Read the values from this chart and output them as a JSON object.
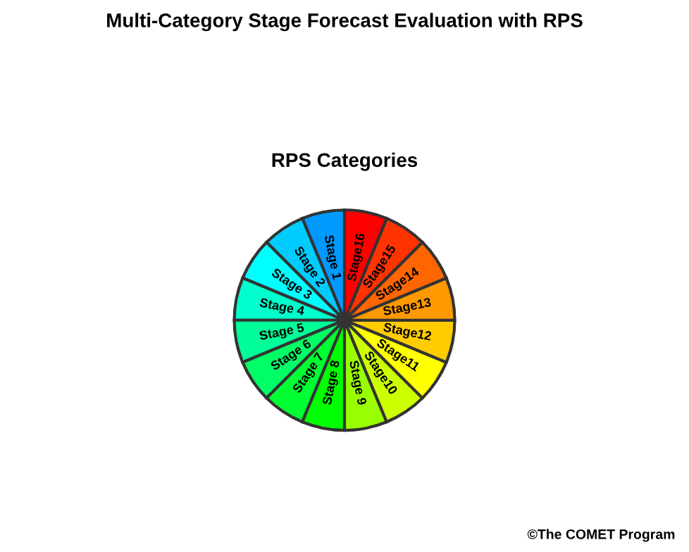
{
  "chart_data": {
    "type": "pie",
    "title": "Multi-Category Stage Forecast Evaluation with RPS",
    "subtitle": "RPS Categories",
    "categories": [
      "Stage 1",
      "Stage 2",
      "Stage 3",
      "Stage 4",
      "Stage 5",
      "Stage 6",
      "Stage 7",
      "Stage 8",
      "Stage 9",
      "Stage10",
      "Stage11",
      "Stage12",
      "Stage13",
      "Stage14",
      "Stage15",
      "Stage16"
    ],
    "values": [
      6.25,
      6.25,
      6.25,
      6.25,
      6.25,
      6.25,
      6.25,
      6.25,
      6.25,
      6.25,
      6.25,
      6.25,
      6.25,
      6.25,
      6.25,
      6.25
    ],
    "colors": [
      "#0099ff",
      "#00ccff",
      "#00ffff",
      "#00ffcc",
      "#00ff99",
      "#00ff66",
      "#00ff33",
      "#00ff00",
      "#99ff00",
      "#ccff00",
      "#ffff00",
      "#ffcc00",
      "#ff9900",
      "#ff6600",
      "#ff3300",
      "#ff0000"
    ],
    "annotations": [
      "©The COMET Program"
    ]
  }
}
